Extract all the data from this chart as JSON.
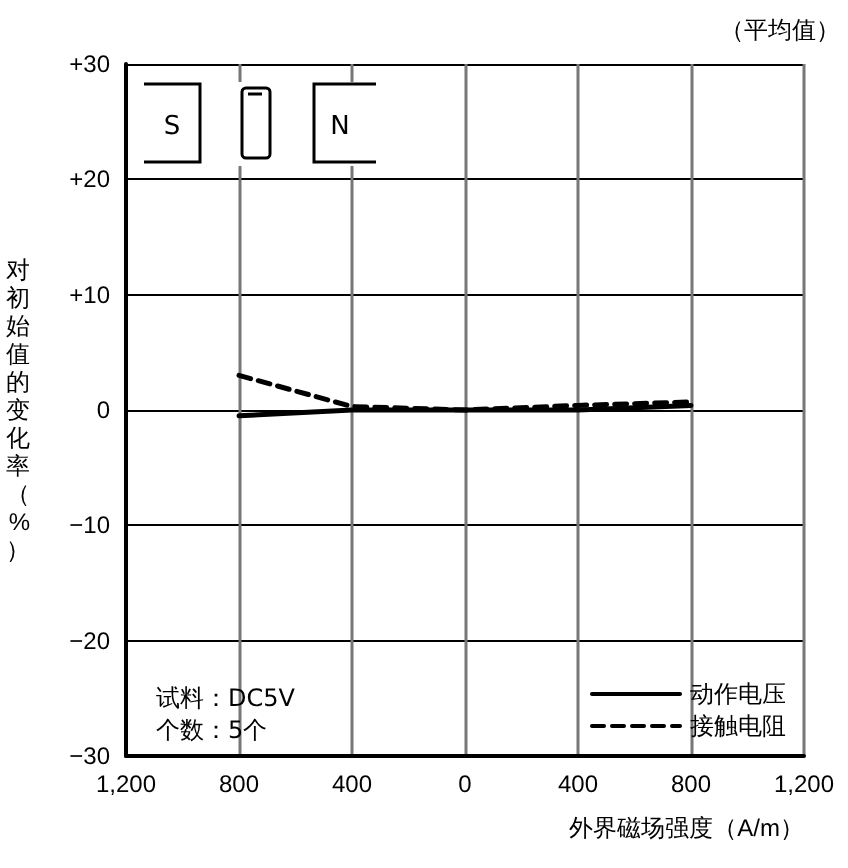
{
  "chart_data": {
    "type": "line",
    "xlabel": "外界磁场强度（A/m）",
    "ylabel": "对初始值的变化率（%）",
    "x": [
      -800,
      -400,
      0,
      400,
      800
    ],
    "series": [
      {
        "name": "动作电压",
        "color": "#000000",
        "line_style": "solid",
        "values": [
          -0.5,
          0,
          0,
          0,
          0.4
        ]
      },
      {
        "name": "接触电阻",
        "color": "#000000",
        "line_style": "dashed",
        "values": [
          3,
          0.3,
          0,
          0.4,
          0.7
        ]
      }
    ],
    "xlim": [
      -1200,
      1200
    ],
    "xticks": [
      {
        "value": -1200,
        "label": "1,200"
      },
      {
        "value": -800,
        "label": "800"
      },
      {
        "value": -400,
        "label": "400"
      },
      0,
      {
        "value": 400,
        "label": "400"
      },
      {
        "value": 800,
        "label": "800"
      },
      {
        "value": 1200,
        "label": "1,200"
      }
    ],
    "ylim": [
      -30,
      30
    ],
    "yticks": [
      {
        "value": -30,
        "label": "−30"
      },
      {
        "value": -20,
        "label": "−20"
      },
      {
        "value": -10,
        "label": "−10"
      },
      0,
      {
        "value": 10,
        "label": "+10"
      },
      {
        "value": 20,
        "label": "+20"
      },
      {
        "value": 30,
        "label": "+30"
      }
    ],
    "annotations": [
      "（平均值）",
      "试料：DC5V",
      "个数：5个",
      "S",
      "N"
    ],
    "grid": true,
    "marker": "none",
    "legend": "bottom right"
  }
}
